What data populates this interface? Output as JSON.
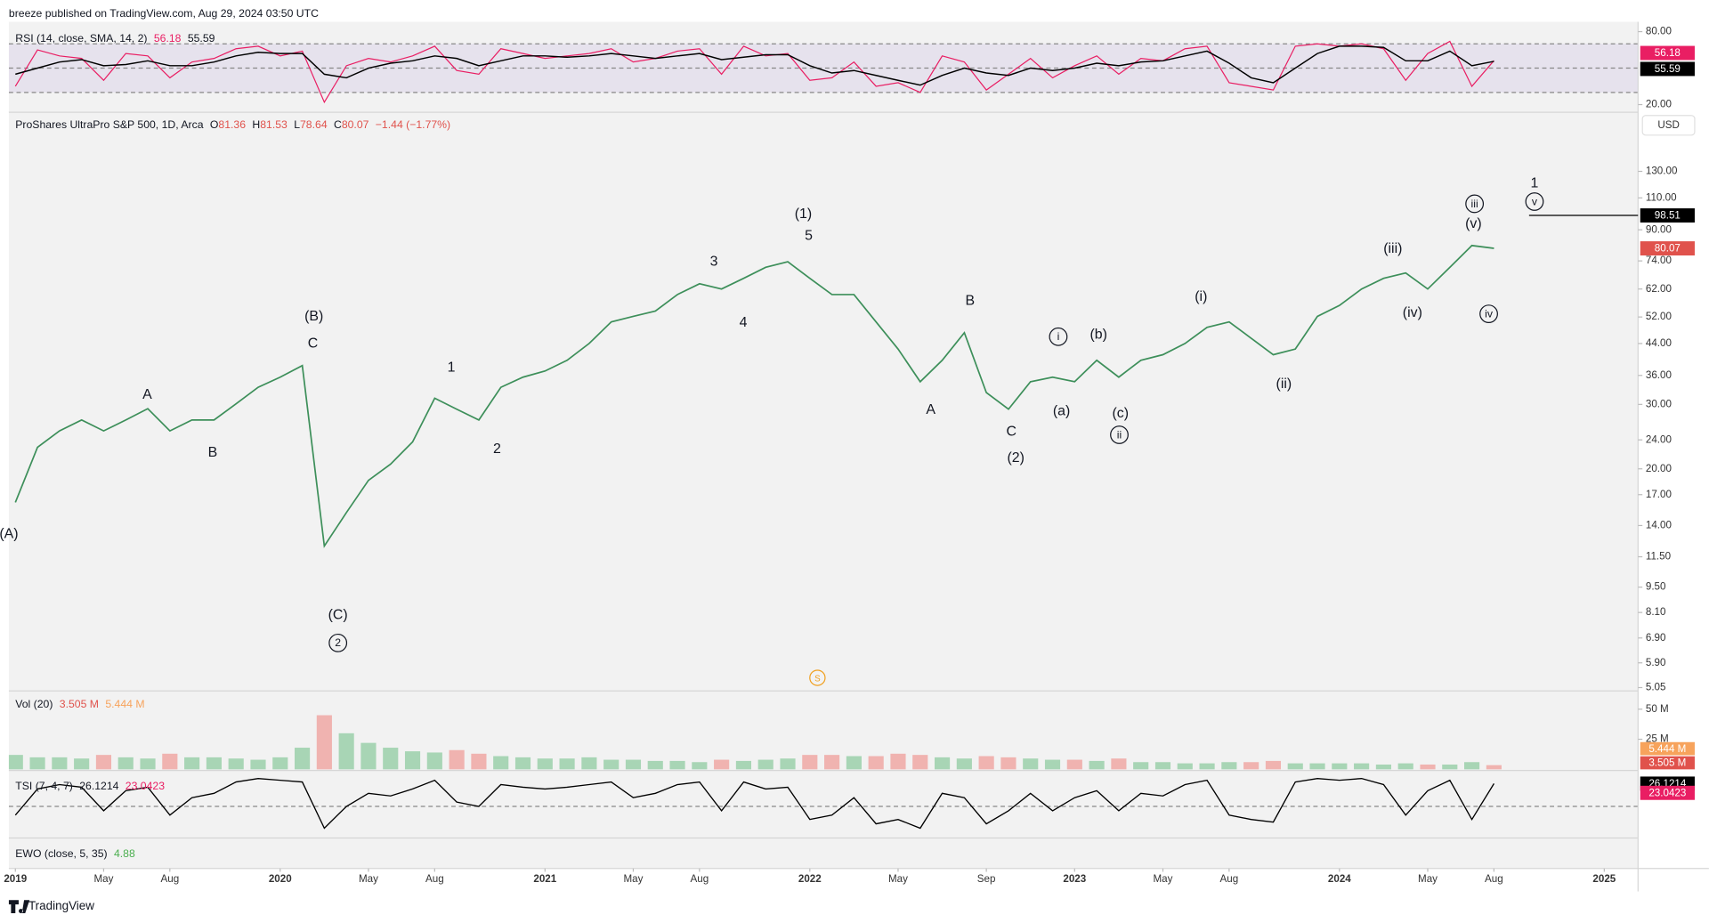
{
  "header": {
    "publisher": "breeze published on TradingView.com, Aug 29, 2024 03:50 UTC"
  },
  "footer": {
    "brand": "TradingView"
  },
  "currency_button": "USD",
  "split_marker": "S",
  "symbol": {
    "name": "ProShares UltraPro S&P 500, 1D, Arca",
    "open_label": "O",
    "open": 81.36,
    "high_label": "H",
    "high": 81.53,
    "low_label": "L",
    "low": 78.64,
    "close_label": "C",
    "change": "−1.44 (−1.77%)"
  },
  "chart_data": [
    {
      "type": "line",
      "log_scale": true,
      "color": "#3d8f5a",
      "x": [
        "2019-01",
        "2019-02",
        "2019-03",
        "2019-04",
        "2019-05",
        "2019-06",
        "2019-07",
        "2019-08",
        "2019-09",
        "2019-10",
        "2019-11",
        "2019-12",
        "2020-01",
        "2020-02",
        "2020-03",
        "2020-04",
        "2020-05",
        "2020-06",
        "2020-07",
        "2020-08",
        "2020-09",
        "2020-10",
        "2020-11",
        "2020-12",
        "2021-01",
        "2021-02",
        "2021-03",
        "2021-04",
        "2021-05",
        "2021-06",
        "2021-07",
        "2021-08",
        "2021-09",
        "2021-10",
        "2021-11",
        "2021-12",
        "2022-01",
        "2022-02",
        "2022-03",
        "2022-04",
        "2022-05",
        "2022-06",
        "2022-07",
        "2022-08",
        "2022-09",
        "2022-10",
        "2022-11",
        "2022-12",
        "2023-01",
        "2023-02",
        "2023-03",
        "2023-04",
        "2023-05",
        "2023-06",
        "2023-07",
        "2023-08",
        "2023-09",
        "2023-10",
        "2023-11",
        "2023-12",
        "2024-01",
        "2024-02",
        "2024-03",
        "2024-04",
        "2024-05",
        "2024-06",
        "2024-07",
        "2024-08"
      ],
      "values": [
        16.2,
        22.9,
        25.4,
        27.2,
        25.4,
        27.2,
        29.2,
        25.4,
        27.2,
        27.2,
        30.1,
        33.4,
        35.6,
        38.3,
        12.3,
        15.2,
        18.6,
        20.6,
        23.7,
        31.2,
        29.1,
        27.2,
        33.4,
        35.6,
        37.0,
        39.6,
        44.0,
        50.4,
        52.2,
        54.0,
        59.9,
        64.1,
        62.0,
        66.3,
        71.1,
        73.6,
        66.3,
        59.9,
        59.9,
        50.4,
        42.5,
        34.6,
        39.6,
        47.1,
        32.3,
        29.1,
        34.6,
        35.6,
        34.6,
        39.6,
        35.6,
        39.6,
        41.0,
        44.0,
        48.7,
        50.4,
        45.5,
        41.0,
        42.5,
        52.2,
        55.9,
        62.0,
        66.3,
        68.6,
        62.0,
        71.1,
        81.5,
        80.07
      ],
      "ylim": [
        4.98,
        186
      ],
      "yticks": [
        {
          "value": 130,
          "label": "130.00"
        },
        {
          "value": 110,
          "label": "110.00"
        },
        {
          "value": 90,
          "label": "90.00"
        },
        {
          "value": 74,
          "label": "74.00"
        },
        {
          "value": 62,
          "label": "62.00"
        },
        {
          "value": 52,
          "label": "52.00"
        },
        {
          "value": 44,
          "label": "44.00"
        },
        {
          "value": 36,
          "label": "36.00"
        },
        {
          "value": 30,
          "label": "30.00"
        },
        {
          "value": 24,
          "label": "24.00"
        },
        {
          "value": 20,
          "label": "20.00"
        },
        {
          "value": 17,
          "label": "17.00"
        },
        {
          "value": 14,
          "label": "14.00"
        },
        {
          "value": 11.5,
          "label": "11.50"
        },
        {
          "value": 9.5,
          "label": "9.50"
        },
        {
          "value": 8.1,
          "label": "8.10"
        },
        {
          "value": 6.9,
          "label": "6.90"
        },
        {
          "value": 5.9,
          "label": "5.90"
        },
        {
          "value": 5.05,
          "label": "5.05"
        }
      ],
      "xticks": [
        {
          "value": "2019-01",
          "label": "2019"
        },
        {
          "value": "2019-05",
          "label": "May"
        },
        {
          "value": "2019-08",
          "label": "Aug"
        },
        {
          "value": "2020-01",
          "label": "2020"
        },
        {
          "value": "2020-05",
          "label": "May"
        },
        {
          "value": "2020-08",
          "label": "Aug"
        },
        {
          "value": "2021-01",
          "label": "2021"
        },
        {
          "value": "2021-05",
          "label": "May"
        },
        {
          "value": "2021-08",
          "label": "Aug"
        },
        {
          "value": "2022-01",
          "label": "2022"
        },
        {
          "value": "2022-05",
          "label": "May"
        },
        {
          "value": "2022-09",
          "label": "Sep"
        },
        {
          "value": "2023-01",
          "label": "2023"
        },
        {
          "value": "2023-05",
          "label": "May"
        },
        {
          "value": "2023-08",
          "label": "Aug"
        },
        {
          "value": "2024-01",
          "label": "2024"
        },
        {
          "value": "2024-05",
          "label": "May"
        },
        {
          "value": "2024-08",
          "label": "Aug"
        },
        {
          "value": "2025-01",
          "label": "2025"
        }
      ],
      "level_line": 98.51,
      "wave_labels": [
        "(A)",
        "A",
        "B",
        "(B)",
        "C",
        "(C)",
        "2",
        "1",
        "2",
        "3",
        "4",
        "(1)",
        "5",
        "A",
        "B",
        "C",
        "(2)",
        "i",
        "(a)",
        "(b)",
        "(c)",
        "ii",
        "(i)",
        "(ii)",
        "(iii)",
        "(iv)",
        "(v)",
        "iii",
        "iv",
        "1",
        "v"
      ]
    },
    {
      "type": "line",
      "title": "RSI (14, close, SMA, 14, 2)",
      "bands": [
        70,
        50,
        30
      ],
      "x": [
        "2019-01",
        "2019-02",
        "2019-03",
        "2019-04",
        "2019-05",
        "2019-06",
        "2019-07",
        "2019-08",
        "2019-09",
        "2019-10",
        "2019-11",
        "2019-12",
        "2020-01",
        "2020-02",
        "2020-03",
        "2020-04",
        "2020-05",
        "2020-06",
        "2020-07",
        "2020-08",
        "2020-09",
        "2020-10",
        "2020-11",
        "2020-12",
        "2021-01",
        "2021-02",
        "2021-03",
        "2021-04",
        "2021-05",
        "2021-06",
        "2021-07",
        "2021-08",
        "2021-09",
        "2021-10",
        "2021-11",
        "2021-12",
        "2022-01",
        "2022-02",
        "2022-03",
        "2022-04",
        "2022-05",
        "2022-06",
        "2022-07",
        "2022-08",
        "2022-09",
        "2022-10",
        "2022-11",
        "2022-12",
        "2023-01",
        "2023-02",
        "2023-03",
        "2023-04",
        "2023-05",
        "2023-06",
        "2023-07",
        "2023-08",
        "2023-09",
        "2023-10",
        "2023-11",
        "2023-12",
        "2024-01",
        "2024-02",
        "2024-03",
        "2024-04",
        "2024-05",
        "2024-06",
        "2024-07",
        "2024-08"
      ],
      "series": [
        {
          "color": "#e91e63",
          "values": [
            35,
            65,
            60,
            58,
            40,
            62,
            60,
            42,
            55,
            58,
            66,
            68,
            60,
            64,
            22,
            52,
            58,
            55,
            60,
            68,
            48,
            45,
            66,
            62,
            58,
            60,
            62,
            66,
            55,
            58,
            64,
            66,
            45,
            68,
            60,
            62,
            40,
            42,
            55,
            35,
            38,
            30,
            60,
            55,
            32,
            45,
            58,
            42,
            52,
            60,
            45,
            58,
            56,
            66,
            68,
            38,
            35,
            32,
            68,
            70,
            68,
            70,
            66,
            40,
            62,
            72,
            35,
            56.18
          ]
        },
        {
          "color": "#000000",
          "values": [
            45,
            50,
            55,
            57,
            52,
            53,
            56,
            52,
            52,
            55,
            60,
            63,
            62,
            62,
            45,
            42,
            50,
            54,
            56,
            60,
            58,
            52,
            56,
            60,
            60,
            59,
            60,
            62,
            60,
            58,
            60,
            62,
            57,
            59,
            61,
            61,
            52,
            46,
            48,
            44,
            40,
            36,
            44,
            50,
            46,
            44,
            50,
            48,
            50,
            54,
            52,
            55,
            56,
            60,
            64,
            54,
            42,
            38,
            50,
            62,
            68,
            68,
            67,
            56,
            56,
            64,
            52,
            55.59
          ]
        }
      ],
      "ylim": [
        16.4,
        86.3
      ],
      "yticks": [
        {
          "value": 80,
          "label": "80.00"
        },
        {
          "value": 20,
          "label": "20.00"
        }
      ]
    },
    {
      "type": "bar",
      "title": "Vol (20)",
      "value_text": "3.505 M",
      "ma_text": "5.444 M",
      "color": "#b9c9c4",
      "x": [
        "2019-01",
        "2019-02",
        "2019-03",
        "2019-04",
        "2019-05",
        "2019-06",
        "2019-07",
        "2019-08",
        "2019-09",
        "2019-10",
        "2019-11",
        "2019-12",
        "2020-01",
        "2020-02",
        "2020-03",
        "2020-04",
        "2020-05",
        "2020-06",
        "2020-07",
        "2020-08",
        "2020-09",
        "2020-10",
        "2020-11",
        "2020-12",
        "2021-01",
        "2021-02",
        "2021-03",
        "2021-04",
        "2021-05",
        "2021-06",
        "2021-07",
        "2021-08",
        "2021-09",
        "2021-10",
        "2021-11",
        "2021-12",
        "2022-01",
        "2022-02",
        "2022-03",
        "2022-04",
        "2022-05",
        "2022-06",
        "2022-07",
        "2022-08",
        "2022-09",
        "2022-10",
        "2022-11",
        "2022-12",
        "2023-01",
        "2023-02",
        "2023-03",
        "2023-04",
        "2023-05",
        "2023-06",
        "2023-07",
        "2023-08",
        "2023-09",
        "2023-10",
        "2023-11",
        "2023-12",
        "2024-01",
        "2024-02",
        "2024-03",
        "2024-04",
        "2024-05",
        "2024-06",
        "2024-07",
        "2024-08"
      ],
      "values": [
        12,
        10,
        10,
        9,
        12,
        10,
        9,
        13,
        10,
        10,
        9,
        8,
        10,
        18,
        45,
        30,
        22,
        18,
        15,
        14,
        16,
        13,
        11,
        10,
        9,
        9,
        10,
        8,
        8,
        7,
        7,
        6,
        8,
        7,
        8,
        9,
        12,
        12,
        11,
        11,
        13,
        12,
        10,
        9,
        11,
        10,
        9,
        8,
        8,
        7,
        9,
        6,
        6,
        5,
        5,
        6,
        6,
        7,
        5,
        5,
        5,
        5,
        4,
        5,
        4,
        4,
        6,
        3.505
      ],
      "ylim": [
        0,
        63.4
      ],
      "yticks": [
        {
          "value": 50,
          "label": "50 M"
        },
        {
          "value": 25,
          "label": "25 M"
        }
      ]
    },
    {
      "type": "line",
      "title": "TSI (7, 4, 7)",
      "signal_last": 23.0423,
      "color": "#000000",
      "x": [
        "2019-01",
        "2019-02",
        "2019-03",
        "2019-04",
        "2019-05",
        "2019-06",
        "2019-07",
        "2019-08",
        "2019-09",
        "2019-10",
        "2019-11",
        "2019-12",
        "2020-01",
        "2020-02",
        "2020-03",
        "2020-04",
        "2020-05",
        "2020-06",
        "2020-07",
        "2020-08",
        "2020-09",
        "2020-10",
        "2020-11",
        "2020-12",
        "2021-01",
        "2021-02",
        "2021-03",
        "2021-04",
        "2021-05",
        "2021-06",
        "2021-07",
        "2021-08",
        "2021-09",
        "2021-10",
        "2021-11",
        "2021-12",
        "2022-01",
        "2022-02",
        "2022-03",
        "2022-04",
        "2022-05",
        "2022-06",
        "2022-07",
        "2022-08",
        "2022-09",
        "2022-10",
        "2022-11",
        "2022-12",
        "2023-01",
        "2023-02",
        "2023-03",
        "2023-04",
        "2023-05",
        "2023-06",
        "2023-07",
        "2023-08",
        "2023-09",
        "2023-10",
        "2023-11",
        "2023-12",
        "2024-01",
        "2024-02",
        "2024-03",
        "2024-04",
        "2024-05",
        "2024-06",
        "2024-07",
        "2024-08"
      ],
      "values": [
        -10,
        20,
        25,
        22,
        -5,
        18,
        22,
        -10,
        10,
        15,
        28,
        32,
        30,
        28,
        -25,
        0,
        15,
        12,
        20,
        30,
        5,
        0,
        25,
        22,
        20,
        22,
        25,
        28,
        10,
        15,
        25,
        28,
        -5,
        28,
        20,
        22,
        -15,
        -10,
        10,
        -20,
        -15,
        -25,
        15,
        10,
        -20,
        -5,
        15,
        -5,
        10,
        18,
        -5,
        15,
        12,
        25,
        30,
        -10,
        -15,
        -18,
        28,
        32,
        30,
        32,
        25,
        -10,
        18,
        30,
        -15,
        26.1214
      ],
      "ylim": [
        -35,
        40
      ],
      "zero_line": 0
    },
    {
      "type": "indicator",
      "title": "EWO (close, 5, 35)",
      "last": 4.88
    }
  ]
}
